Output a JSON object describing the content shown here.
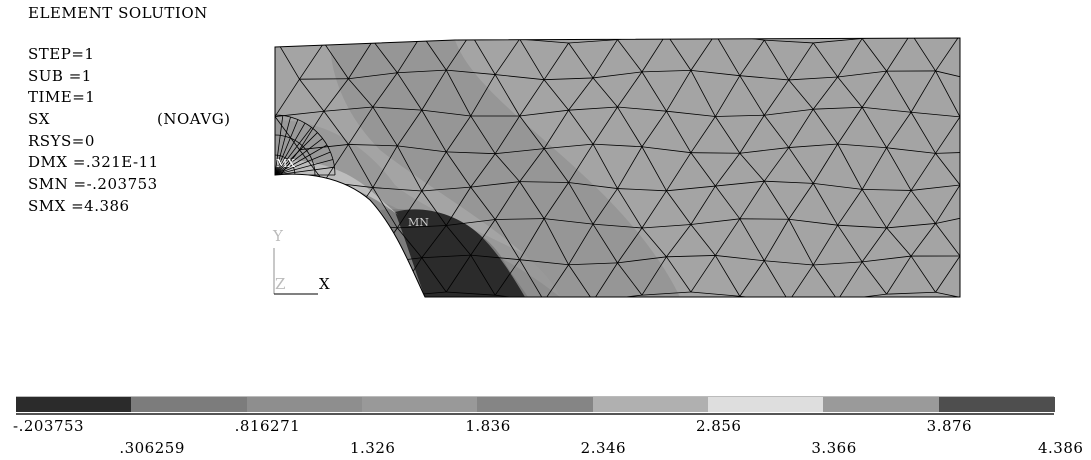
{
  "title": "ELEMENT SOLUTION",
  "info": [
    {
      "key": "STEP=1",
      "note": ""
    },
    {
      "key": "SUB =1",
      "note": ""
    },
    {
      "key": "TIME=1",
      "note": ""
    },
    {
      "key": "SX",
      "note": "(NOAVG)"
    },
    {
      "key": "RSYS=0",
      "note": ""
    },
    {
      "key": "DMX =.321E-11",
      "note": ""
    },
    {
      "key": "SMN =-.203753",
      "note": ""
    },
    {
      "key": "SMX =4.386",
      "note": ""
    }
  ],
  "markers": {
    "min": "MN",
    "max": "MX"
  },
  "triad": {
    "y": "Y",
    "z": "Z",
    "x": "X"
  },
  "legend": {
    "bands": [
      {
        "from": "-.203753",
        "to": ".306259",
        "color": "#2b2b2b"
      },
      {
        "from": ".306259",
        "to": ".816271",
        "color": "#7c7c7c"
      },
      {
        "from": ".816271",
        "to": "1.326",
        "color": "#8e8e8e"
      },
      {
        "from": "1.326",
        "to": "1.836",
        "color": "#999999"
      },
      {
        "from": "1.836",
        "to": "2.346",
        "color": "#858585"
      },
      {
        "from": "2.346",
        "to": "2.856",
        "color": "#b0b0b0"
      },
      {
        "from": "2.856",
        "to": "3.366",
        "color": "#dedede"
      },
      {
        "from": "3.366",
        "to": "3.876",
        "color": "#9a9a9a"
      },
      {
        "from": "3.876",
        "to": "4.386",
        "color": "#4e4e4e"
      }
    ],
    "labels": [
      "-.203753",
      ".306259",
      ".816271",
      "1.326",
      "1.836",
      "2.346",
      "2.856",
      "3.366",
      "3.876",
      "4.386"
    ]
  },
  "colors": {
    "background": "#ffffff",
    "model_base": "#a4a4a4",
    "band_low": "#2b2b2b",
    "band_mid_dark": "#7c7c7c",
    "band_mid": "#8e8e8e",
    "band_mid_light": "#999999",
    "mesh_line": "#000000"
  }
}
